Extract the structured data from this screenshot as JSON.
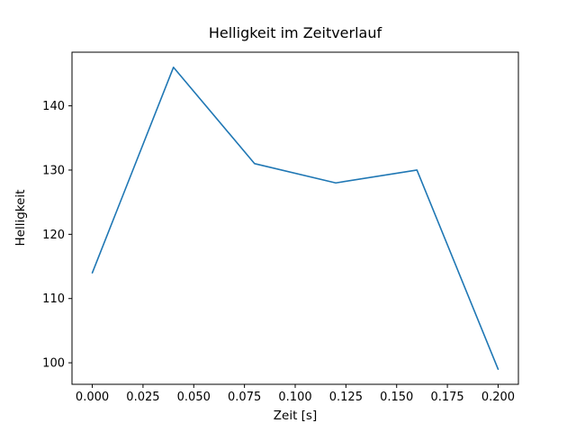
{
  "chart": {
    "title": "Helligkeit im Zeitverlauf",
    "xlabel": "Zeit [s]",
    "ylabel": "Helligkeit"
  },
  "chart_data": {
    "type": "line",
    "title": "Helligkeit im Zeitverlauf",
    "xlabel": "Zeit [s]",
    "ylabel": "Helligkeit",
    "x": [
      0.0,
      0.04,
      0.08,
      0.12,
      0.16,
      0.2
    ],
    "y": [
      114,
      146,
      131,
      128,
      130,
      99
    ],
    "xlim": [
      -0.01,
      0.21
    ],
    "ylim": [
      96.65,
      148.35
    ],
    "xticks": [
      0.0,
      0.025,
      0.05,
      0.075,
      0.1,
      0.125,
      0.15,
      0.175,
      0.2
    ],
    "xtick_labels": [
      "0.000",
      "0.025",
      "0.050",
      "0.075",
      "0.100",
      "0.125",
      "0.150",
      "0.175",
      "0.200"
    ],
    "yticks": [
      100,
      110,
      120,
      130,
      140
    ],
    "ytick_labels": [
      "100",
      "110",
      "120",
      "130",
      "140"
    ],
    "line_color": "#1f77b4",
    "axis_color": "#000000",
    "background_color": "#ffffff",
    "grid": false,
    "legend": null
  }
}
